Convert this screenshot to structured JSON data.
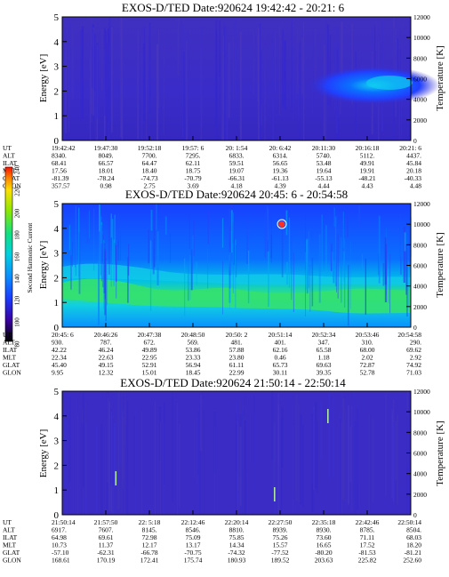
{
  "chart_data": [
    {
      "type": "heatmap",
      "title": "EXOS-D/TED   Date:920624  19:42:42 - 20:21: 6",
      "ylabel": "Energy [eV]",
      "ylabel_right": "Temperature [K]",
      "ylim": [
        0,
        5
      ],
      "yticks": [
        "0",
        "1",
        "2",
        "3",
        "4",
        "5"
      ],
      "ylim_right": [
        0,
        12000
      ],
      "yticks_right": [
        "0",
        "2000",
        "4000",
        "6000",
        "8000",
        "10000",
        "12000"
      ],
      "footer": {
        "labels": [
          "UT",
          "ALT",
          "ILAT",
          "MLT",
          "GLAT",
          "GLON"
        ],
        "columns": [
          [
            "19:42:42",
            "8340.",
            "68.41",
            "17.56",
            "-81.39",
            "357.57"
          ],
          [
            "19:47:30",
            "8049.",
            "66.57",
            "18.01",
            "-78.24",
            "0.98"
          ],
          [
            "19:52:18",
            "7700.",
            "64.47",
            "18.40",
            "-74.73",
            "2.75"
          ],
          [
            "19:57: 6",
            "7295.",
            "62.11",
            "18.75",
            "-70.79",
            "3.69"
          ],
          [
            "20: 1:54",
            "6833.",
            "59.51",
            "19.07",
            "-66.31",
            "4.18"
          ],
          [
            "20: 6:42",
            "6314.",
            "56.65",
            "19.36",
            "-61.13",
            "4.39"
          ],
          [
            "20:11:30",
            "5740.",
            "53.48",
            "19.64",
            "-55.13",
            "4.44"
          ],
          [
            "20:16:18",
            "5112.",
            "49.91",
            "19.91",
            "-48.21",
            "4.43"
          ],
          [
            "20:21: 6",
            "4437.",
            "45.84",
            "20.18",
            "-40.33",
            "4.48"
          ]
        ]
      }
    },
    {
      "type": "heatmap",
      "title": "EXOS-D/TED   Date:920624  20:45: 6 - 20:54:58",
      "ylabel": "Energy [eV]",
      "ylabel_right": "Temperature [K]",
      "ylim": [
        0,
        5
      ],
      "yticks": [
        "0",
        "1",
        "2",
        "3",
        "4",
        "5"
      ],
      "ylim_right": [
        0,
        12000
      ],
      "yticks_right": [
        "0",
        "2000",
        "4000",
        "6000",
        "8000",
        "10000",
        "12000"
      ],
      "footer": {
        "labels": [
          "UT",
          "ALT",
          "ILAT",
          "MLT",
          "GLAT",
          "GLON"
        ],
        "columns": [
          [
            "20:45: 6",
            "930.",
            "42.22",
            "22.34",
            "45.40",
            "9.95"
          ],
          [
            "20:46:26",
            "787.",
            "46.24",
            "22.63",
            "49.15",
            "12.32"
          ],
          [
            "20:47:38",
            "672.",
            "49.89",
            "22.95",
            "52.91",
            "15.01"
          ],
          [
            "20:48:50",
            "569.",
            "53.86",
            "23.33",
            "56.94",
            "18.45"
          ],
          [
            "20:50: 2",
            "481.",
            "57.88",
            "23.80",
            "61.11",
            "22.99"
          ],
          [
            "20:51:14",
            "401.",
            "62.16",
            "0.46",
            "65.73",
            "30.11"
          ],
          [
            "20:52:34",
            "347.",
            "65.58",
            "1.18",
            "69.63",
            "39.35"
          ],
          [
            "20:53:46",
            "310.",
            "68.00",
            "2.02",
            "72.87",
            "52.78"
          ],
          [
            "20:54:58",
            "290.",
            "69.62",
            "2.92",
            "74.92",
            "71.03"
          ]
        ]
      }
    },
    {
      "type": "heatmap",
      "title": "EXOS-D/TED   Date:920624  21:50:14 - 22:50:14",
      "ylabel": "Energy [eV]",
      "ylabel_right": "Temperature [K]",
      "ylim": [
        0,
        5
      ],
      "yticks": [
        "0",
        "1",
        "2",
        "3",
        "4",
        "5"
      ],
      "ylim_right": [
        0,
        12000
      ],
      "yticks_right": [
        "0",
        "2000",
        "4000",
        "6000",
        "8000",
        "10000",
        "12000"
      ],
      "footer": {
        "labels": [
          "UT",
          "ALT",
          "ILAT",
          "MLT",
          "GLAT",
          "GLON"
        ],
        "columns": [
          [
            "21:50:14",
            "6917.",
            "64.98",
            "10.73",
            "-57.10",
            "168.61"
          ],
          [
            "21:57:50",
            "7607.",
            "69.61",
            "11.37",
            "-62.31",
            "170.19"
          ],
          [
            "22: 5:18",
            "8145.",
            "72.98",
            "12.17",
            "-66.78",
            "172.41"
          ],
          [
            "22:12:46",
            "8546.",
            "75.09",
            "13.17",
            "-70.75",
            "175.74"
          ],
          [
            "22:20:14",
            "8810.",
            "75.85",
            "14.34",
            "-74.32",
            "180.93"
          ],
          [
            "22:27:50",
            "8939.",
            "75.26",
            "15.57",
            "-77.52",
            "189.52"
          ],
          [
            "22:35:18",
            "8930.",
            "73.60",
            "16.65",
            "-80.20",
            "203.63"
          ],
          [
            "22:42:46",
            "8785.",
            "71.11",
            "17.52",
            "-81.53",
            "225.82"
          ],
          [
            "22:50:14",
            "8504.",
            "68.03",
            "18.20",
            "-81.21",
            "252.60"
          ]
        ]
      }
    }
  ],
  "colorbar": {
    "label": "Second Harmonic Current",
    "ticks": [
      "80",
      "100",
      "120",
      "140",
      "160",
      "180",
      "200",
      "220",
      "240"
    ],
    "range": [
      80,
      240
    ],
    "colors": [
      "#000000",
      "#3a00a0",
      "#1a3cff",
      "#0a8cff",
      "#00d0e0",
      "#10e080",
      "#8ce800",
      "#ffe000",
      "#ff8000",
      "#ff1000"
    ]
  }
}
